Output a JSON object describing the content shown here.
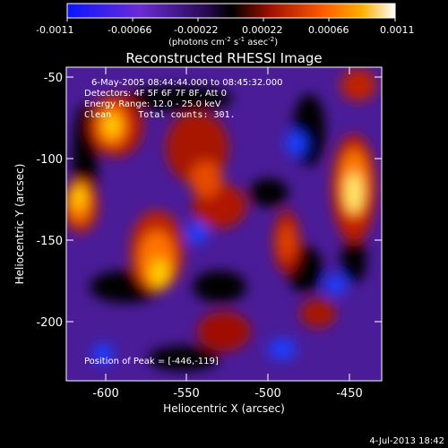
{
  "colorbar": {
    "tick_labels": [
      "-0.0011",
      "-0.00066",
      "-0.00022",
      "0.00022",
      "0.00066",
      "0.0011"
    ],
    "unit_parts": {
      "a": "(photons cm",
      "b": "-2",
      "c": " s",
      "d": "-1",
      "e": " asec",
      "f": "-2",
      "g": ")"
    },
    "range": [
      -0.0011,
      0.0011
    ]
  },
  "plot": {
    "title": "Reconstructed RHESSI Image",
    "annotation": {
      "line1": "6-May-2005 08:44:44.000 to 08:45:32.000",
      "line2": "Detectors: 4F 5F 6F 7F 8F, Att 0",
      "line3": "Energy Range: 12.0 - 25.0 keV",
      "line4": "Clean     Total counts: 301."
    },
    "peak_label": "Position of Peak = [-446,-119]",
    "peak": [
      -446,
      -119
    ],
    "x_axis": {
      "label": "Heliocentric X (arcsec)",
      "ticks": [
        "-600",
        "-550",
        "-500",
        "-450"
      ],
      "range": [
        -620,
        -428
      ]
    },
    "y_axis": {
      "label": "Heliocentric Y (arcsec)",
      "ticks": [
        "-50",
        "-100",
        "-150",
        "-200"
      ],
      "range": [
        -236,
        -44
      ]
    },
    "colormap": "red-temperature with purple/blue negatives"
  },
  "timestamp": "4-Jul-2013 18:42"
}
